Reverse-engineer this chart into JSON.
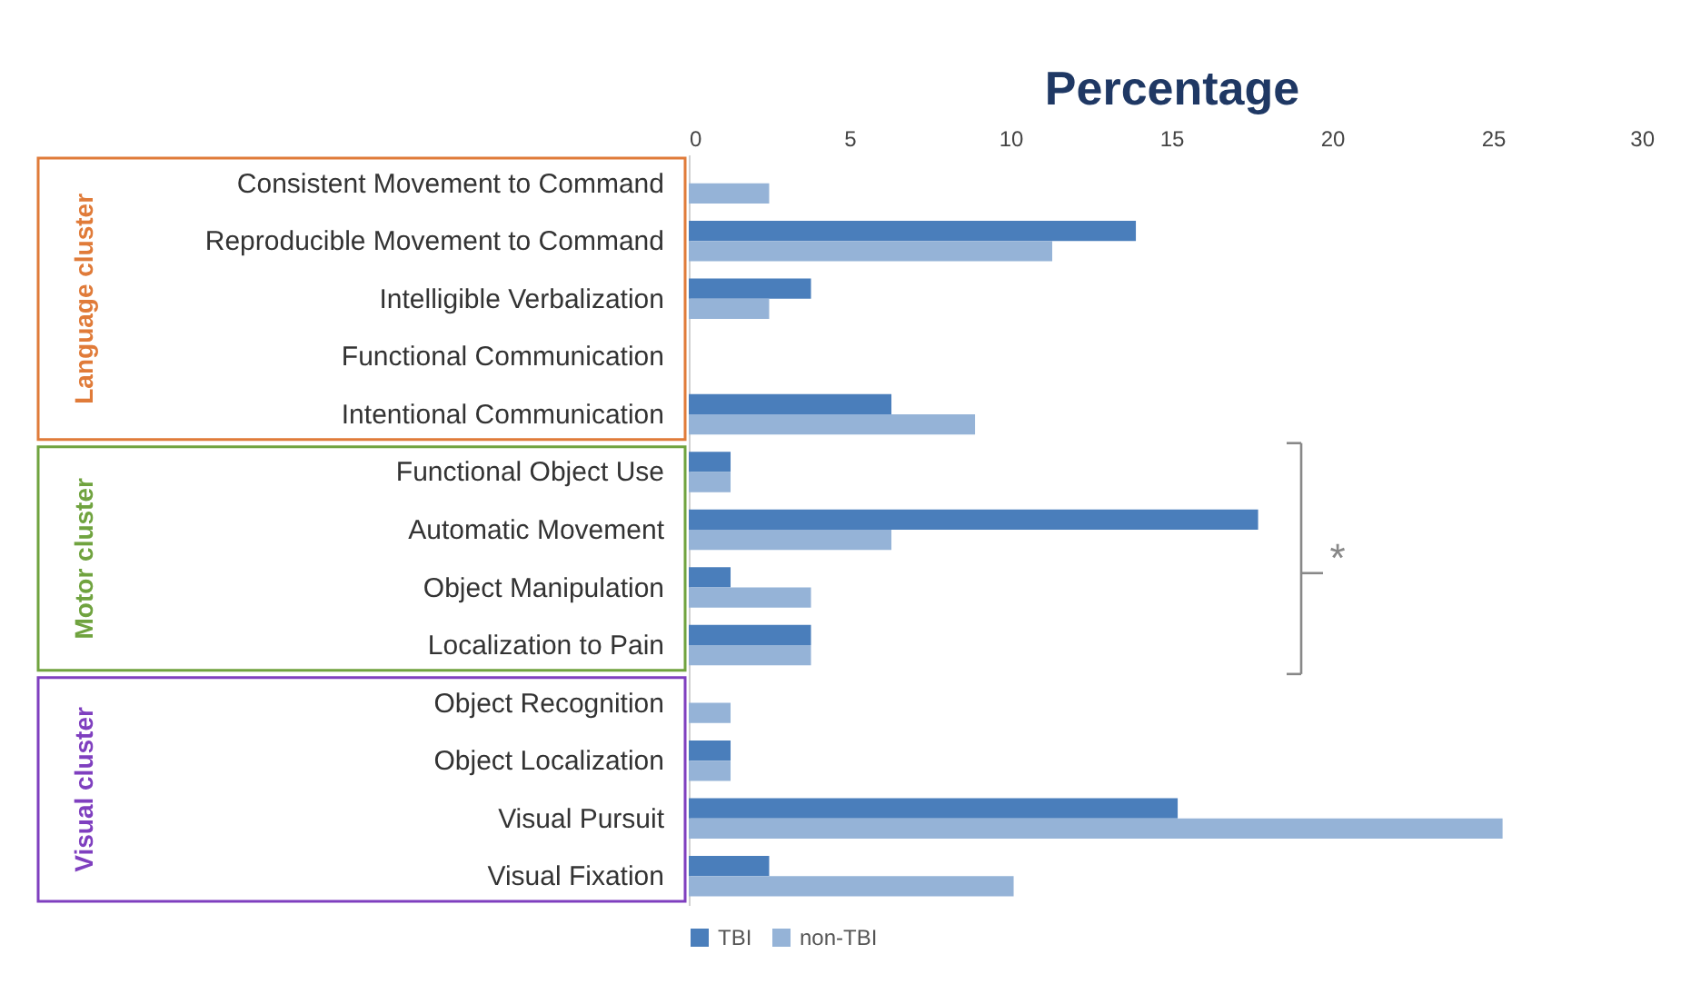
{
  "chart_data": {
    "type": "bar",
    "orientation": "horizontal",
    "xlabel": "Percentage",
    "categories": [
      "Consistent Movement to Command",
      "Reproducible Movement to Command",
      "Intelligible Verbalization",
      "Functional Communication",
      "Intentional Communication",
      "Functional Object Use",
      "Automatic Movement",
      "Object Manipulation",
      "Localization to Pain",
      "Object Recognition",
      "Object Localization",
      "Visual Pursuit",
      "Visual Fixation"
    ],
    "series": [
      {
        "name": "TBI",
        "color": "#4a7ebb",
        "values": [
          0,
          13.9,
          3.8,
          0,
          6.3,
          1.3,
          17.7,
          1.3,
          3.8,
          0,
          1.3,
          15.2,
          2.5
        ]
      },
      {
        "name": "non-TBI",
        "color": "#95b3d7",
        "values": [
          2.5,
          11.3,
          2.5,
          0,
          8.9,
          1.3,
          6.3,
          3.8,
          3.8,
          1.3,
          1.3,
          25.3,
          10.1
        ]
      }
    ],
    "xlim": [
      0,
      30
    ],
    "xticks": [
      0,
      5,
      10,
      15,
      20,
      25,
      30
    ],
    "grid": false,
    "legend": "bottom",
    "annotations": [
      "Language cluster",
      "Motor cluster",
      "Visual cluster",
      "*"
    ]
  }
}
